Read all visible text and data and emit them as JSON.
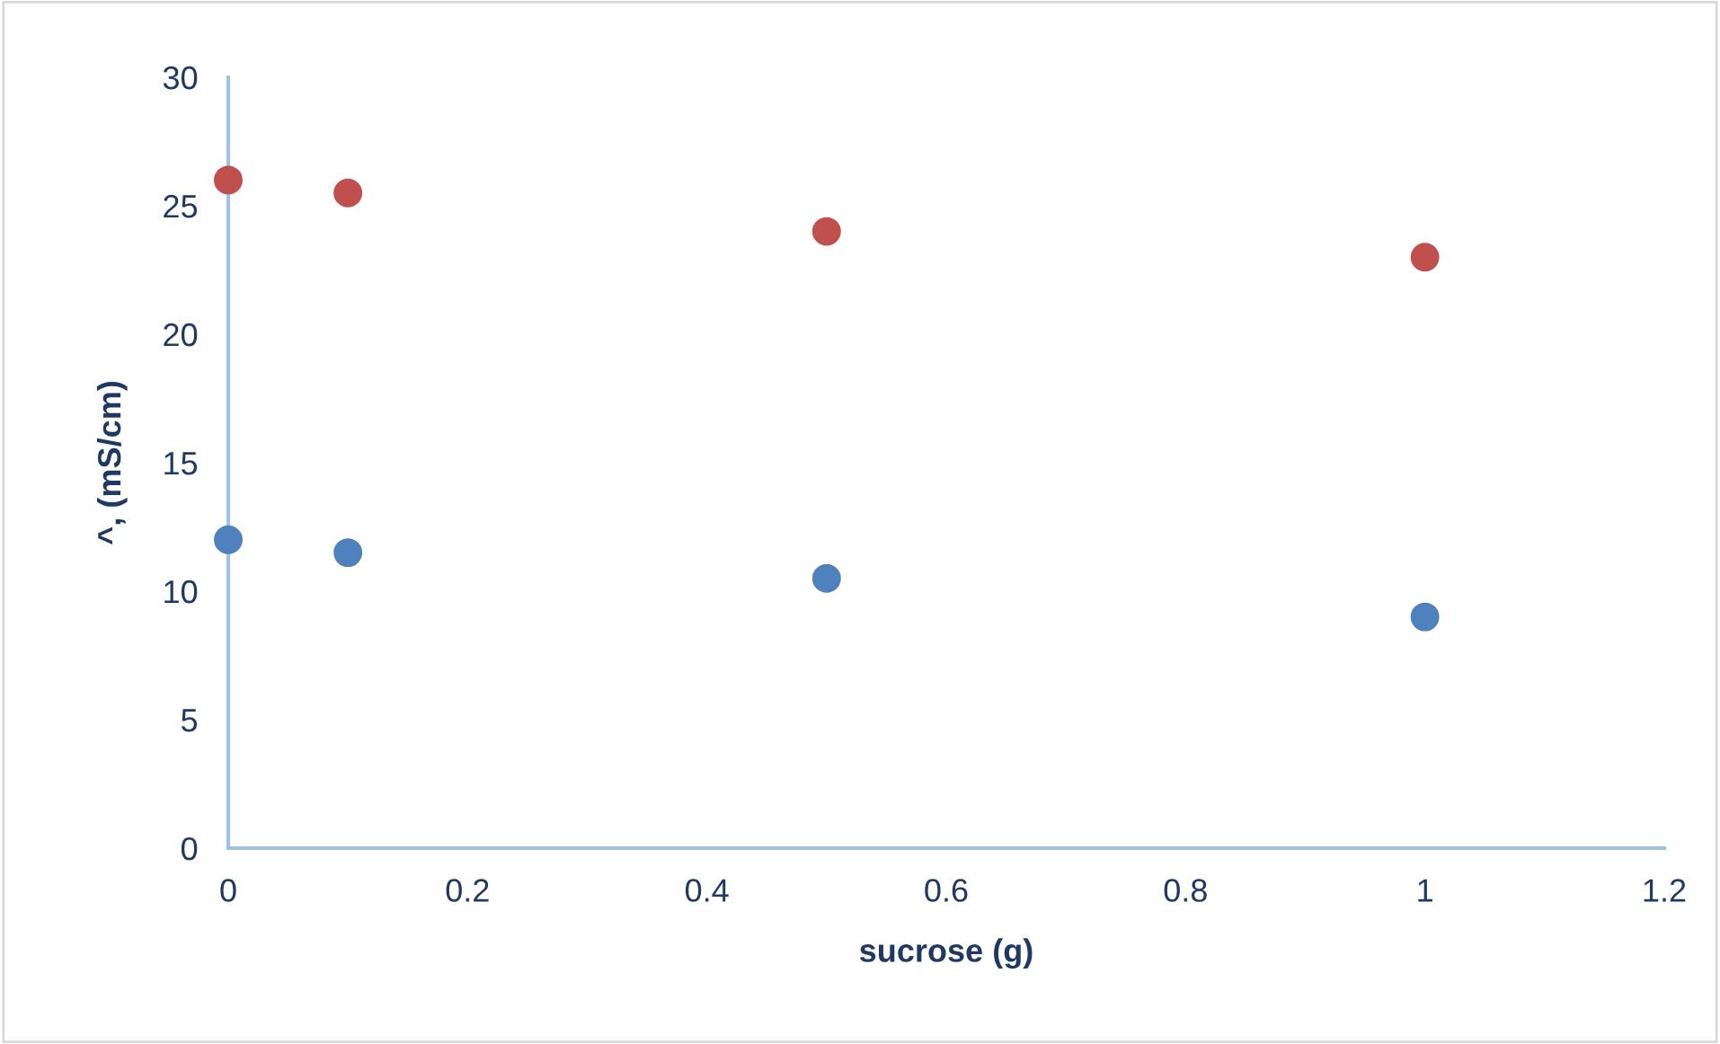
{
  "chart_data": {
    "type": "scatter",
    "xlabel": "sucrose (g)",
    "ylabel": "^, (mS/cm)",
    "x": [
      0,
      0.1,
      0.5,
      1
    ],
    "series": [
      {
        "color": "#c0504d",
        "values": [
          26,
          25.5,
          24,
          23
        ]
      },
      {
        "color": "#4f81bd",
        "values": [
          12,
          11.5,
          10.5,
          9
        ]
      }
    ],
    "xlim": [
      0,
      1.2
    ],
    "xticks": [
      0,
      0.2,
      0.4,
      0.6,
      0.8,
      1,
      1.2
    ],
    "ylim": [
      0,
      30
    ],
    "yticks": [
      0,
      5,
      10,
      15,
      20,
      25,
      30
    ],
    "grid": false,
    "legend": false,
    "marker": "circle"
  }
}
